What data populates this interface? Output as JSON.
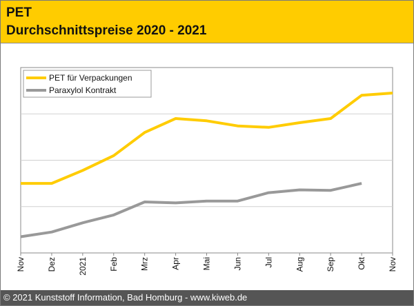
{
  "header": {
    "title": "PET",
    "subtitle": "Durchschnittspreise 2020 - 2021"
  },
  "footer": {
    "copyright": "© 2021 Kunststoff Information, Bad Homburg - www.kiweb.de"
  },
  "colors": {
    "header_bg": "#ffcc00",
    "footer_bg": "#555555",
    "pet_line": "#ffcc00",
    "paraxylol_line": "#999999",
    "grid": "#d0d0d0"
  },
  "chart_data": {
    "type": "line",
    "title": "",
    "xlabel": "",
    "ylabel": "",
    "categories": [
      "Nov",
      "Dez",
      "2021",
      "Feb",
      "Mrz",
      "Apr",
      "Mai",
      "Jun",
      "Jul",
      "Aug",
      "Sep",
      "Okt",
      "Nov"
    ],
    "ylim": [
      0,
      4
    ],
    "y_ticks_labeled": false,
    "grid": "horizontal",
    "legend_position": "top-left",
    "series": [
      {
        "name": "PET für Verpackungen",
        "color": "#ffcc00",
        "values": [
          1.5,
          1.5,
          1.78,
          2.1,
          2.6,
          2.9,
          2.85,
          2.74,
          2.71,
          2.81,
          2.9,
          3.4,
          3.45
        ]
      },
      {
        "name": "Paraxylol Kontrakt",
        "color": "#999999",
        "values": [
          0.35,
          0.45,
          0.65,
          0.82,
          1.1,
          1.08,
          1.12,
          1.12,
          1.3,
          1.36,
          1.35,
          1.5,
          null
        ]
      }
    ]
  }
}
